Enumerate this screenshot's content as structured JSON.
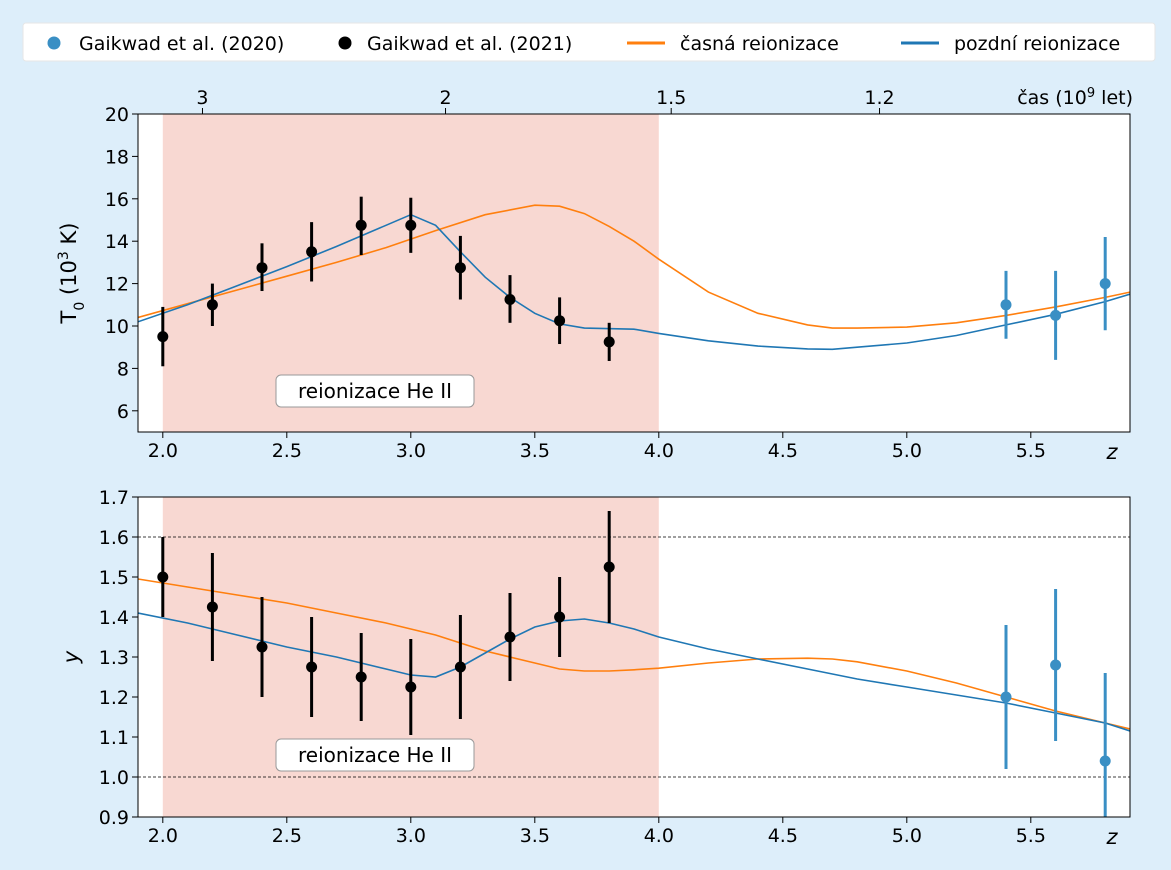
{
  "legend": {
    "items": [
      {
        "label": "Gaikwad et al. (2020)",
        "kind": "marker",
        "color": "#3a8fc4"
      },
      {
        "label": "Gaikwad et al. (2021)",
        "kind": "marker",
        "color": "#000000"
      },
      {
        "label": "časná reionizace",
        "kind": "line",
        "color": "#ff7f0e"
      },
      {
        "label": "pozdní reionizace",
        "kind": "line",
        "color": "#1f77b4"
      }
    ]
  },
  "annotation": "reionizace He II",
  "chart_data": [
    {
      "type": "line",
      "panel": "top",
      "ylabel_main": "T",
      "ylabel_sub": "0",
      "ylabel_unit_pre": " (10",
      "ylabel_unit_sup": "3",
      "ylabel_unit_post": " K)",
      "xlabel": "z",
      "top_axis_label_pre": "čas (10",
      "top_axis_label_sup": "9",
      "top_axis_label_post": " let)",
      "xlim": [
        1.9,
        5.9
      ],
      "ylim": [
        5,
        20
      ],
      "xticks": [
        2.0,
        2.5,
        3.0,
        3.5,
        4.0,
        4.5,
        5.0,
        5.5
      ],
      "xtick_labels": [
        "2.0",
        "2.5",
        "3.0",
        "3.5",
        "4.0",
        "4.5",
        "5.0",
        "5.5"
      ],
      "yticks": [
        6,
        8,
        10,
        12,
        14,
        16,
        18,
        20
      ],
      "ytick_labels": [
        "6",
        "8",
        "10",
        "12",
        "14",
        "16",
        "18",
        "20"
      ],
      "top_ticks": [
        {
          "z": 2.16,
          "label": "3"
        },
        {
          "z": 3.14,
          "label": "2"
        },
        {
          "z": 4.05,
          "label": "1.5"
        },
        {
          "z": 4.89,
          "label": "1.2"
        }
      ],
      "shaded_region": [
        2.0,
        4.0
      ],
      "series": [
        {
          "name": "časná reionizace",
          "color": "#ff7f0e",
          "x": [
            1.9,
            2.1,
            2.3,
            2.5,
            2.7,
            2.9,
            3.1,
            3.3,
            3.5,
            3.6,
            3.7,
            3.8,
            3.9,
            4.0,
            4.2,
            4.4,
            4.6,
            4.7,
            4.8,
            5.0,
            5.2,
            5.4,
            5.6,
            5.8,
            5.9
          ],
          "y": [
            10.4,
            11.05,
            11.7,
            12.35,
            13.0,
            13.7,
            14.5,
            15.25,
            15.7,
            15.65,
            15.3,
            14.7,
            14.0,
            13.15,
            11.6,
            10.6,
            10.05,
            9.9,
            9.9,
            9.95,
            10.15,
            10.5,
            10.9,
            11.35,
            11.6
          ]
        },
        {
          "name": "pozdní reionizace",
          "color": "#1f77b4",
          "x": [
            1.9,
            2.1,
            2.3,
            2.5,
            2.7,
            2.9,
            3.0,
            3.1,
            3.2,
            3.3,
            3.4,
            3.5,
            3.6,
            3.7,
            3.9,
            4.0,
            4.2,
            4.4,
            4.6,
            4.7,
            4.8,
            5.0,
            5.2,
            5.4,
            5.6,
            5.8,
            5.9
          ],
          "y": [
            10.2,
            11.0,
            11.9,
            12.8,
            13.75,
            14.75,
            15.25,
            14.75,
            13.5,
            12.3,
            11.35,
            10.6,
            10.1,
            9.9,
            9.85,
            9.65,
            9.3,
            9.05,
            8.92,
            8.9,
            9.0,
            9.2,
            9.55,
            10.05,
            10.55,
            11.15,
            11.5
          ]
        }
      ],
      "points": [
        {
          "name": "Gaikwad et al. (2021)",
          "color": "#000000",
          "x": [
            2.0,
            2.2,
            2.4,
            2.6,
            2.8,
            3.0,
            3.2,
            3.4,
            3.6,
            3.8
          ],
          "y": [
            9.5,
            11.0,
            12.75,
            13.5,
            14.75,
            14.75,
            12.75,
            11.25,
            10.25,
            9.25
          ],
          "yerr_low": [
            1.4,
            1.0,
            1.1,
            1.4,
            1.4,
            1.3,
            1.5,
            1.1,
            1.1,
            0.9
          ],
          "yerr_high": [
            1.4,
            1.0,
            1.15,
            1.4,
            1.35,
            1.3,
            1.5,
            1.15,
            1.1,
            0.9
          ]
        },
        {
          "name": "Gaikwad et al. (2020)",
          "color": "#3a8fc4",
          "x": [
            5.4,
            5.6,
            5.8
          ],
          "y": [
            11.0,
            10.5,
            12.0
          ],
          "yerr_low": [
            1.6,
            2.1,
            2.2
          ],
          "yerr_high": [
            1.6,
            2.1,
            2.2
          ]
        }
      ]
    },
    {
      "type": "line",
      "panel": "bottom",
      "ylabel": "y",
      "xlabel": "z",
      "xlim": [
        1.9,
        5.9
      ],
      "ylim": [
        0.9,
        1.7
      ],
      "xticks": [
        2.0,
        2.5,
        3.0,
        3.5,
        4.0,
        4.5,
        5.0,
        5.5
      ],
      "xtick_labels": [
        "2.0",
        "2.5",
        "3.0",
        "3.5",
        "4.0",
        "4.5",
        "5.0",
        "5.5"
      ],
      "yticks": [
        0.9,
        1.0,
        1.1,
        1.2,
        1.3,
        1.4,
        1.5,
        1.6,
        1.7
      ],
      "ytick_labels": [
        "0.9",
        "1.0",
        "1.1",
        "1.2",
        "1.3",
        "1.4",
        "1.5",
        "1.6",
        "1.7"
      ],
      "hlines": [
        1.0,
        1.6
      ],
      "shaded_region": [
        2.0,
        4.0
      ],
      "series": [
        {
          "name": "časná reionizace",
          "color": "#ff7f0e",
          "x": [
            1.9,
            2.1,
            2.3,
            2.5,
            2.7,
            2.9,
            3.1,
            3.3,
            3.5,
            3.6,
            3.7,
            3.8,
            3.9,
            4.0,
            4.2,
            4.4,
            4.6,
            4.7,
            4.8,
            5.0,
            5.2,
            5.4,
            5.6,
            5.8,
            5.9
          ],
          "y": [
            1.495,
            1.475,
            1.455,
            1.435,
            1.41,
            1.385,
            1.355,
            1.315,
            1.285,
            1.27,
            1.265,
            1.265,
            1.268,
            1.272,
            1.285,
            1.295,
            1.297,
            1.295,
            1.288,
            1.265,
            1.235,
            1.2,
            1.165,
            1.135,
            1.12
          ]
        },
        {
          "name": "pozdní reionizace",
          "color": "#1f77b4",
          "x": [
            1.9,
            2.1,
            2.3,
            2.5,
            2.7,
            2.9,
            3.0,
            3.1,
            3.2,
            3.3,
            3.4,
            3.5,
            3.6,
            3.7,
            3.8,
            3.9,
            4.0,
            4.2,
            4.4,
            4.6,
            4.8,
            5.0,
            5.2,
            5.4,
            5.6,
            5.8,
            5.9
          ],
          "y": [
            1.41,
            1.385,
            1.355,
            1.325,
            1.3,
            1.27,
            1.255,
            1.25,
            1.275,
            1.31,
            1.345,
            1.375,
            1.39,
            1.395,
            1.385,
            1.37,
            1.35,
            1.32,
            1.295,
            1.27,
            1.245,
            1.225,
            1.205,
            1.185,
            1.16,
            1.135,
            1.115
          ]
        }
      ],
      "points": [
        {
          "name": "Gaikwad et al. (2021)",
          "color": "#000000",
          "x": [
            2.0,
            2.2,
            2.4,
            2.6,
            2.8,
            3.0,
            3.2,
            3.4,
            3.6,
            3.8
          ],
          "y": [
            1.5,
            1.425,
            1.325,
            1.275,
            1.25,
            1.225,
            1.275,
            1.35,
            1.4,
            1.525
          ],
          "yerr_low": [
            0.1,
            0.135,
            0.125,
            0.125,
            0.11,
            0.12,
            0.13,
            0.11,
            0.1,
            0.14
          ],
          "yerr_high": [
            0.1,
            0.135,
            0.125,
            0.125,
            0.11,
            0.12,
            0.13,
            0.11,
            0.1,
            0.14
          ]
        },
        {
          "name": "Gaikwad et al. (2020)",
          "color": "#3a8fc4",
          "x": [
            5.4,
            5.6,
            5.8
          ],
          "y": [
            1.2,
            1.28,
            1.04
          ],
          "yerr_low": [
            0.18,
            0.19,
            0.22
          ],
          "yerr_high": [
            0.18,
            0.19,
            0.22
          ]
        }
      ]
    }
  ]
}
